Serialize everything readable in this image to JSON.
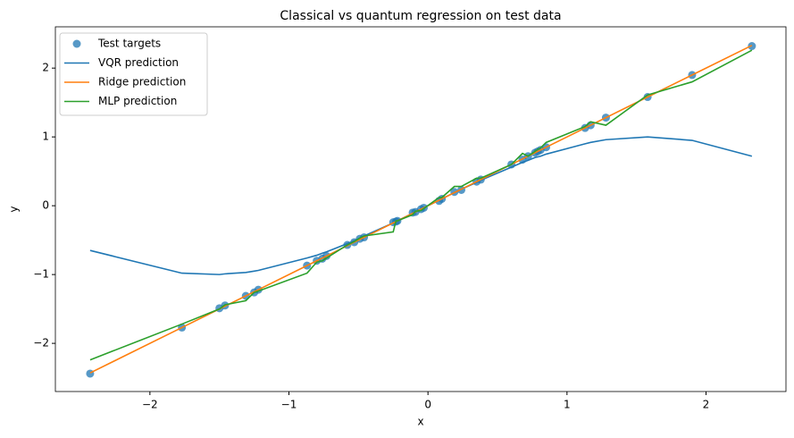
{
  "chart_data": {
    "type": "line",
    "title": "Classical vs quantum regression on test data",
    "x_label": "x",
    "y_label": "y",
    "x": [
      -2.43,
      -1.77,
      -1.5,
      -1.46,
      -1.31,
      -1.25,
      -1.22,
      -0.87,
      -0.8,
      -0.76,
      -0.73,
      -0.58,
      -0.53,
      -0.49,
      -0.46,
      -0.25,
      -0.23,
      -0.22,
      -0.11,
      -0.09,
      -0.05,
      -0.03,
      0.08,
      0.1,
      0.19,
      0.24,
      0.35,
      0.38,
      0.6,
      0.68,
      0.72,
      0.77,
      0.79,
      0.81,
      0.85,
      1.13,
      1.17,
      1.28,
      1.58,
      1.9,
      2.33
    ],
    "series": [
      {
        "name": "Test targets",
        "mark": "scatter",
        "color": "#1f77b4",
        "values": [
          -2.44,
          -1.77,
          -1.49,
          -1.45,
          -1.31,
          -1.26,
          -1.22,
          -0.87,
          -0.8,
          -0.77,
          -0.73,
          -0.57,
          -0.53,
          -0.48,
          -0.46,
          -0.24,
          -0.23,
          -0.22,
          -0.1,
          -0.09,
          -0.05,
          -0.03,
          0.07,
          0.1,
          0.2,
          0.23,
          0.35,
          0.38,
          0.6,
          0.67,
          0.72,
          0.77,
          0.79,
          0.81,
          0.85,
          1.13,
          1.17,
          1.28,
          1.58,
          1.9,
          2.32
        ]
      },
      {
        "name": "VQR prediction",
        "mark": "line",
        "color": "#1f77b4",
        "values": [
          -0.65,
          -0.98,
          -1.0,
          -0.99,
          -0.97,
          -0.95,
          -0.94,
          -0.76,
          -0.72,
          -0.69,
          -0.67,
          -0.55,
          -0.51,
          -0.47,
          -0.44,
          -0.25,
          -0.23,
          -0.22,
          -0.11,
          -0.09,
          -0.05,
          -0.03,
          0.08,
          0.1,
          0.19,
          0.24,
          0.34,
          0.37,
          0.56,
          0.63,
          0.66,
          0.7,
          0.71,
          0.72,
          0.75,
          0.9,
          0.92,
          0.96,
          1.0,
          0.95,
          0.72
        ]
      },
      {
        "name": "Ridge prediction",
        "mark": "line",
        "color": "#ff7f0e",
        "values": [
          -2.43,
          -1.77,
          -1.5,
          -1.46,
          -1.31,
          -1.25,
          -1.22,
          -0.87,
          -0.8,
          -0.76,
          -0.73,
          -0.58,
          -0.53,
          -0.49,
          -0.46,
          -0.25,
          -0.23,
          -0.22,
          -0.11,
          -0.09,
          -0.05,
          -0.03,
          0.08,
          0.1,
          0.19,
          0.24,
          0.35,
          0.38,
          0.6,
          0.68,
          0.72,
          0.77,
          0.79,
          0.81,
          0.85,
          1.13,
          1.17,
          1.28,
          1.58,
          1.9,
          2.33
        ]
      },
      {
        "name": "MLP prediction",
        "mark": "line",
        "color": "#2ca02c",
        "values": [
          -2.24,
          -1.72,
          -1.5,
          -1.44,
          -1.38,
          -1.26,
          -1.24,
          -0.98,
          -0.82,
          -0.8,
          -0.76,
          -0.57,
          -0.52,
          -0.47,
          -0.44,
          -0.38,
          -0.22,
          -0.22,
          -0.13,
          -0.08,
          -0.07,
          -0.04,
          0.12,
          0.12,
          0.28,
          0.28,
          0.4,
          0.4,
          0.6,
          0.76,
          0.72,
          0.79,
          0.82,
          0.84,
          0.92,
          1.15,
          1.22,
          1.17,
          1.61,
          1.8,
          2.26
        ]
      }
    ],
    "xlim": [
      -2.68,
      2.575
    ],
    "ylim": [
      -2.7,
      2.6
    ],
    "xticks": [
      {
        "value": -2,
        "label": "−2"
      },
      {
        "value": -1,
        "label": "−1"
      },
      0,
      1,
      2
    ],
    "yticks": [
      {
        "value": -2,
        "label": "−2"
      },
      {
        "value": -1,
        "label": "−1"
      },
      0,
      1,
      2
    ],
    "grid": false,
    "legend": "upper left"
  }
}
